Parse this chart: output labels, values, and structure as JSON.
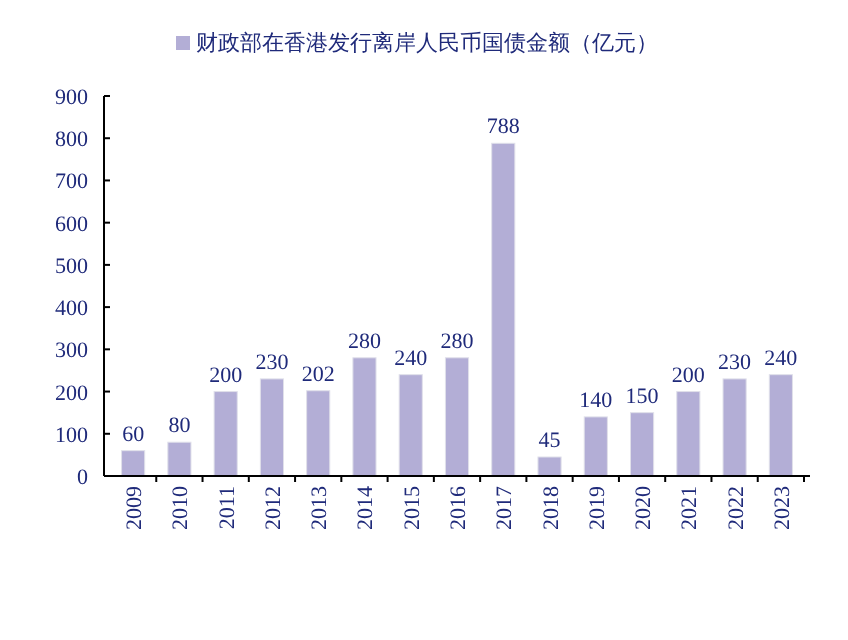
{
  "chart_data": {
    "type": "bar",
    "categories": [
      "2009",
      "2010",
      "2011",
      "2012",
      "2013",
      "2014",
      "2015",
      "2016",
      "2017",
      "2018",
      "2019",
      "2020",
      "2021",
      "2022",
      "2023"
    ],
    "series": [
      {
        "name": "财政部在香港发行离岸人民币国债金额（亿元）",
        "color": "#b3aed6",
        "values": [
          60,
          80,
          200,
          230,
          202,
          280,
          240,
          280,
          788,
          45,
          140,
          150,
          200,
          230,
          240
        ]
      }
    ],
    "ylim": [
      0,
      900
    ],
    "yticks": [
      0,
      100,
      200,
      300,
      400,
      500,
      600,
      700,
      800,
      900
    ],
    "data_labels": true,
    "legend": "top",
    "grid": false
  }
}
